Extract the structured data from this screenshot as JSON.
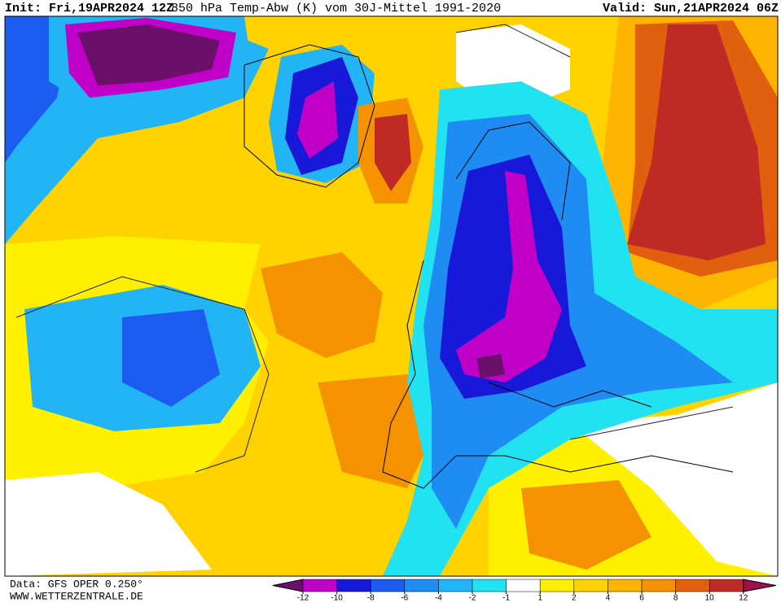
{
  "header": {
    "init": "Init: Fri,19APR2024 12Z",
    "title": "850 hPa Temp-Abw (K) vom 30J-Mittel 1991-2020",
    "valid": "Valid: Sun,21APR2024 06Z"
  },
  "footer": {
    "source": "Data: GFS OPER 0.250°",
    "website": "WWW.WETTERZENTRALE.DE"
  },
  "colorbar": {
    "ticks": [
      -12,
      -10,
      -8,
      -6,
      -4,
      -2,
      -1,
      1,
      2,
      4,
      6,
      8,
      10,
      12
    ],
    "colors": [
      "#6a106a",
      "#c000c8",
      "#1818d8",
      "#1c5cf0",
      "#1e8cf2",
      "#22b4f4",
      "#22e2f2",
      "#ffffff",
      "#fff000",
      "#ffd200",
      "#ffb400",
      "#f49200",
      "#e06010",
      "#c02a24",
      "#a0104a"
    ]
  }
}
